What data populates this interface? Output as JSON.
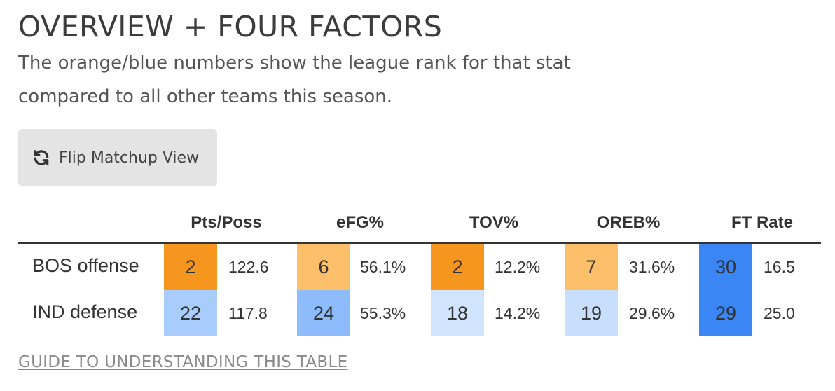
{
  "header": {
    "title": "OVERVIEW + FOUR FACTORS",
    "subtitle": "The orange/blue numbers show the league rank for that stat compared to all other teams this season."
  },
  "flip_button": {
    "label": "Flip Matchup View",
    "icon": "refresh-icon"
  },
  "table": {
    "columns": [
      "Pts/Poss",
      "eFG%",
      "TOV%",
      "OREB%",
      "FT Rate"
    ],
    "rows": [
      {
        "label": "BOS offense",
        "cells": [
          {
            "rank": "2",
            "value": "122.6",
            "color": "#f7961e"
          },
          {
            "rank": "6",
            "value": "56.1%",
            "color": "#fbbf6a"
          },
          {
            "rank": "2",
            "value": "12.2%",
            "color": "#f7961e"
          },
          {
            "rank": "7",
            "value": "31.6%",
            "color": "#fbbf6a"
          },
          {
            "rank": "30",
            "value": "16.5",
            "color": "#3b86f5"
          }
        ]
      },
      {
        "label": "IND defense",
        "cells": [
          {
            "rank": "22",
            "value": "117.8",
            "color": "#a8ccfc"
          },
          {
            "rank": "24",
            "value": "55.3%",
            "color": "#8dbbfb"
          },
          {
            "rank": "18",
            "value": "14.2%",
            "color": "#d1e4fd"
          },
          {
            "rank": "19",
            "value": "29.6%",
            "color": "#c8defd"
          },
          {
            "rank": "29",
            "value": "25.0",
            "color": "#3b86f5"
          }
        ]
      }
    ]
  },
  "guide_link": {
    "label": "GUIDE TO UNDERSTANDING THIS TABLE"
  }
}
